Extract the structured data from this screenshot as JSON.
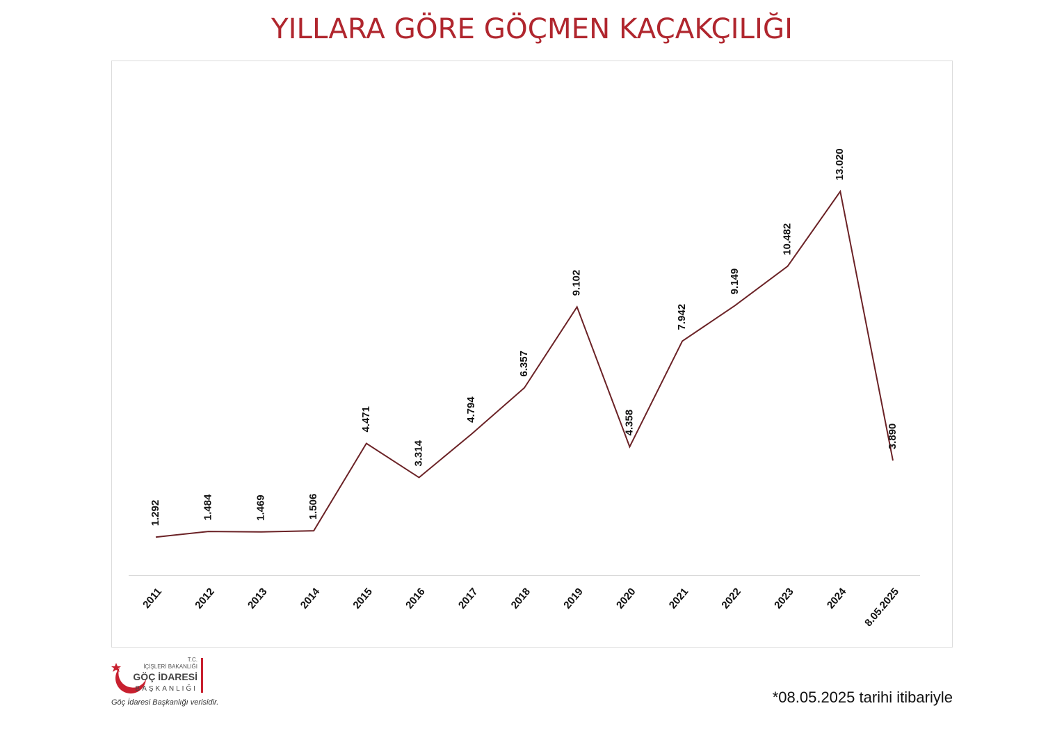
{
  "chart_data": {
    "type": "line",
    "title": "YILLARA GÖRE GÖÇMEN KAÇAKÇILIĞI",
    "categories": [
      "2011",
      "2012",
      "2013",
      "2014",
      "2015",
      "2016",
      "2017",
      "2018",
      "2019",
      "2020",
      "2021",
      "2022",
      "2023",
      "2024",
      "8.05.2025"
    ],
    "values": [
      1292,
      1484,
      1469,
      1506,
      4471,
      3314,
      4794,
      6357,
      9102,
      4358,
      7942,
      9149,
      10482,
      13020,
      3890
    ],
    "value_labels": [
      "1.292",
      "1.484",
      "1.469",
      "1.506",
      "4.471",
      "3.314",
      "4.794",
      "6.357",
      "9.102",
      "4.358",
      "7.942",
      "9.149",
      "10.482",
      "13.020",
      "3.890"
    ],
    "color": "#6b2226",
    "ylim": [
      0,
      16000
    ]
  },
  "logo": {
    "line1": "T.C.",
    "line2": "İÇİŞLERİ BAKANLIĞI",
    "line3": "GÖÇ İDARESİ",
    "line4": "BAŞKANLIĞI"
  },
  "source": "Göç İdaresi Başkanlığı verisidir.",
  "footnote": "*08.05.2025 tarihi itibariyle"
}
